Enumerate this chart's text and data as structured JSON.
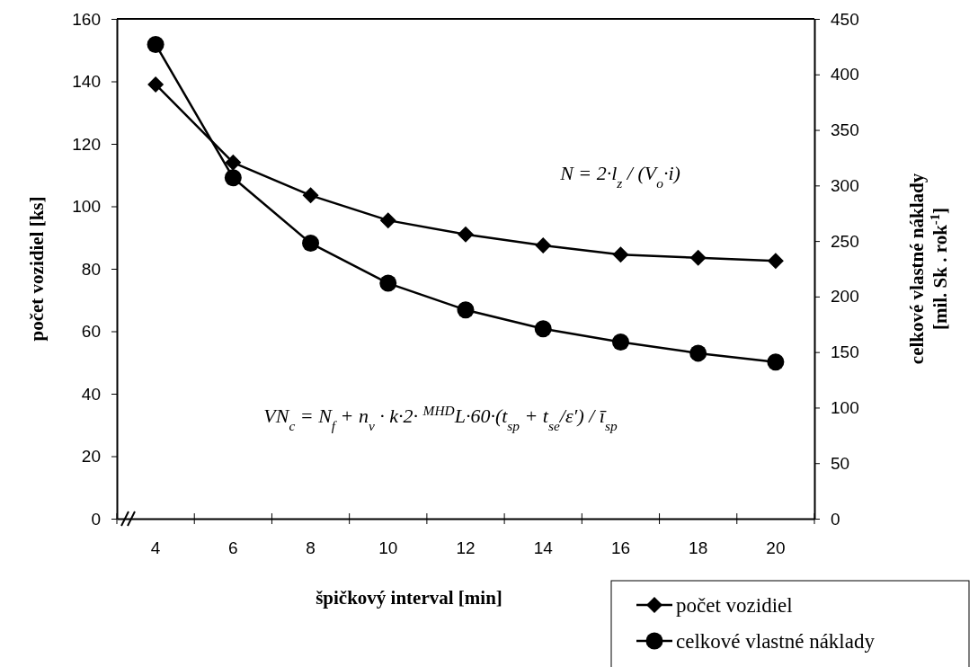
{
  "chart_data": {
    "type": "line",
    "categories": [
      "4",
      "6",
      "8",
      "10",
      "12",
      "14",
      "16",
      "18",
      "20"
    ],
    "xlabel": "špičkový interval  [min]",
    "ylabel": "počet vozidiel  [ks]",
    "y2label": "celkové vlastné náklady\n[mil. Sk . rok$^{-1}$]",
    "ylim": [
      0,
      160
    ],
    "yticks": [
      0,
      20,
      40,
      60,
      80,
      100,
      120,
      140,
      160
    ],
    "y2lim": [
      0,
      450
    ],
    "y2ticks": [
      0,
      50,
      100,
      150,
      200,
      250,
      300,
      350,
      400,
      450
    ],
    "legend": "bottom right",
    "grid": false,
    "series": [
      {
        "name": "počet vozidiel",
        "color": "#000000",
        "marker": "diamond",
        "values": [
          139,
          114,
          103.5,
          95.5,
          91,
          87.5,
          84.5,
          83.5,
          82.5
        ]
      },
      {
        "name": "celkové vlastné náklady",
        "color": "#000000",
        "marker": "circle",
        "axis": "y2",
        "values": [
          427,
          307,
          248,
          212,
          188,
          171,
          159,
          149,
          141
        ]
      }
    ],
    "annotations": [
      "N = 2·l$_{z}$ / (V$_{o}$·i)",
      "VN$_{c}$ = N$_{f}$ + n$_{v}$ · k·2· $^{MHD}$L·60·(t$_{sp}$ + t$_{se}$/ε′) / ī$_{sp}$"
    ]
  }
}
